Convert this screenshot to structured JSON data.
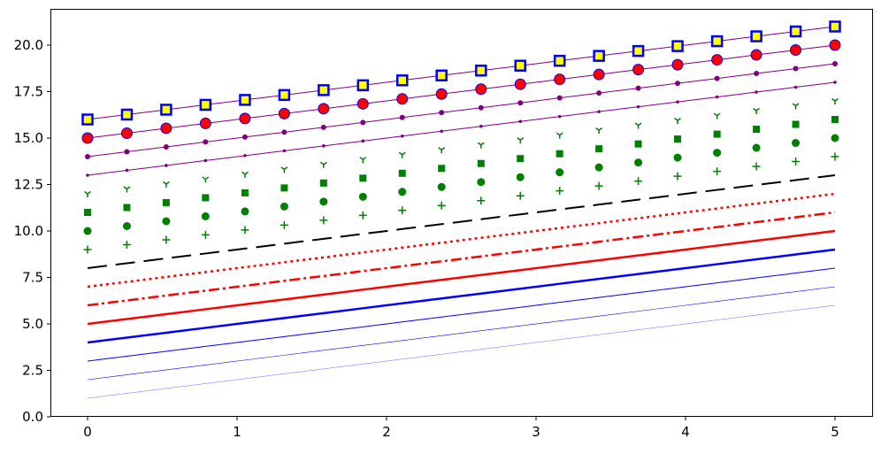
{
  "chart_data": {
    "type": "line",
    "title": "",
    "xlabel": "",
    "ylabel": "",
    "xlim": [
      -0.25,
      5.25
    ],
    "ylim": [
      0,
      21.8
    ],
    "grid": false,
    "legend": "none",
    "x_ticks": [
      "0",
      "1",
      "2",
      "3",
      "4",
      "5"
    ],
    "y_ticks": [
      "0.0",
      "2.5",
      "5.0",
      "7.5",
      "10.0",
      "12.5",
      "15.0",
      "17.5",
      "20.0"
    ],
    "x": [
      0,
      0.263,
      0.526,
      0.789,
      1.053,
      1.316,
      1.579,
      1.842,
      2.105,
      2.368,
      2.632,
      2.895,
      3.158,
      3.421,
      3.684,
      3.947,
      4.211,
      4.474,
      4.737,
      5
    ],
    "series": [
      {
        "color": "#0000ff",
        "linestyle": "solid",
        "marker": "none",
        "values": [
          1,
          1.263,
          1.526,
          1.789,
          2.053,
          2.316,
          2.579,
          2.842,
          3.105,
          3.368,
          3.632,
          3.895,
          4.158,
          4.421,
          4.684,
          4.947,
          5.211,
          5.474,
          5.737,
          6
        ]
      },
      {
        "color": "#0000ff",
        "linestyle": "solid",
        "marker": "none",
        "values": [
          2,
          2.263,
          2.526,
          2.789,
          3.053,
          3.316,
          3.579,
          3.842,
          4.105,
          4.368,
          4.632,
          4.895,
          5.158,
          5.421,
          5.684,
          5.947,
          6.211,
          6.474,
          6.737,
          7
        ]
      },
      {
        "color": "#0000ff",
        "linestyle": "solid",
        "marker": "none",
        "values": [
          3,
          3.263,
          3.526,
          3.789,
          4.053,
          4.316,
          4.579,
          4.842,
          5.105,
          5.368,
          5.632,
          5.895,
          6.158,
          6.421,
          6.684,
          6.947,
          7.211,
          7.474,
          7.737,
          8
        ]
      },
      {
        "color": "#0000ff",
        "linestyle": "solid",
        "marker": "none",
        "values": [
          4,
          4.263,
          4.526,
          4.789,
          5.053,
          5.316,
          5.579,
          5.842,
          6.105,
          6.368,
          6.632,
          6.895,
          7.158,
          7.421,
          7.684,
          7.947,
          8.211,
          8.474,
          8.737,
          9
        ]
      },
      {
        "color": "#ff0000",
        "linestyle": "solid",
        "marker": "none",
        "values": [
          5,
          5.263,
          5.526,
          5.789,
          6.053,
          6.316,
          6.579,
          6.842,
          7.105,
          7.368,
          7.632,
          7.895,
          8.158,
          8.421,
          8.684,
          8.947,
          9.211,
          9.474,
          9.737,
          10
        ]
      },
      {
        "color": "#ff0000",
        "linestyle": "dashdot",
        "marker": "none",
        "values": [
          6,
          6.263,
          6.526,
          6.789,
          7.053,
          7.316,
          7.579,
          7.842,
          8.105,
          8.368,
          8.632,
          8.895,
          9.158,
          9.421,
          9.684,
          9.947,
          10.211,
          10.474,
          10.737,
          11
        ]
      },
      {
        "color": "#ff0000",
        "linestyle": "dotted",
        "marker": "none",
        "values": [
          7,
          7.263,
          7.526,
          7.789,
          8.053,
          8.316,
          8.579,
          8.842,
          9.105,
          9.368,
          9.632,
          9.895,
          10.158,
          10.421,
          10.684,
          10.947,
          11.211,
          11.474,
          11.737,
          12
        ]
      },
      {
        "color": "#000000",
        "linestyle": "dashed",
        "marker": "none",
        "values": [
          8,
          8.263,
          8.526,
          8.789,
          9.053,
          9.316,
          9.579,
          9.842,
          10.105,
          10.368,
          10.632,
          10.895,
          11.158,
          11.421,
          11.684,
          11.947,
          12.211,
          12.474,
          12.737,
          13
        ]
      },
      {
        "color": "#008000",
        "linestyle": "none",
        "marker": "plus",
        "values": [
          9,
          9.263,
          9.526,
          9.789,
          10.053,
          10.316,
          10.579,
          10.842,
          11.105,
          11.368,
          11.632,
          11.895,
          12.158,
          12.421,
          12.684,
          12.947,
          13.211,
          13.474,
          13.737,
          14
        ]
      },
      {
        "color": "#008000",
        "linestyle": "none",
        "marker": "circle",
        "values": [
          10,
          10.263,
          10.526,
          10.789,
          11.053,
          11.316,
          11.579,
          11.842,
          12.105,
          12.368,
          12.632,
          12.895,
          13.158,
          13.421,
          13.684,
          13.947,
          14.211,
          14.474,
          14.737,
          15
        ]
      },
      {
        "color": "#008000",
        "linestyle": "none",
        "marker": "square",
        "values": [
          11,
          11.263,
          11.526,
          11.789,
          12.053,
          12.316,
          12.579,
          12.842,
          13.105,
          13.368,
          13.632,
          13.895,
          14.158,
          14.421,
          14.684,
          14.947,
          15.211,
          15.474,
          15.737,
          16
        ]
      },
      {
        "color": "#008000",
        "linestyle": "none",
        "marker": "tri_down",
        "values": [
          12,
          12.263,
          12.526,
          12.789,
          13.053,
          13.316,
          13.579,
          13.842,
          14.105,
          14.368,
          14.632,
          14.895,
          15.158,
          15.421,
          15.684,
          15.947,
          16.211,
          16.474,
          16.737,
          17
        ]
      },
      {
        "color": "#800080",
        "linestyle": "solid",
        "marker": "point",
        "values": [
          13,
          13.263,
          13.526,
          13.789,
          14.053,
          14.316,
          14.579,
          14.842,
          15.105,
          15.368,
          15.632,
          15.895,
          16.158,
          16.421,
          16.684,
          16.947,
          17.211,
          17.474,
          17.737,
          18
        ]
      },
      {
        "color": "#800080",
        "linestyle": "solid",
        "marker": "circle",
        "values": [
          14,
          14.263,
          14.526,
          14.789,
          15.053,
          15.316,
          15.579,
          15.842,
          16.105,
          16.368,
          16.632,
          16.895,
          17.158,
          17.421,
          17.684,
          17.947,
          18.211,
          18.474,
          18.737,
          19
        ]
      },
      {
        "color": "#800080",
        "linestyle": "solid",
        "marker": "circle",
        "marker_face": "#ff0000",
        "marker_edge": "#0000ff",
        "values": [
          15,
          15.263,
          15.526,
          15.789,
          16.053,
          16.316,
          16.579,
          16.842,
          17.105,
          17.368,
          17.632,
          17.895,
          18.158,
          18.421,
          18.684,
          18.947,
          19.211,
          19.474,
          19.737,
          20
        ]
      },
      {
        "color": "#800080",
        "linestyle": "solid",
        "marker": "square",
        "marker_face": "#ffff00",
        "marker_edge": "#0000ff",
        "values": [
          16,
          16.263,
          16.526,
          16.789,
          17.053,
          17.316,
          17.579,
          17.842,
          18.105,
          18.368,
          18.632,
          18.895,
          19.158,
          19.421,
          19.684,
          19.947,
          20.211,
          20.474,
          20.737,
          21
        ]
      }
    ]
  }
}
